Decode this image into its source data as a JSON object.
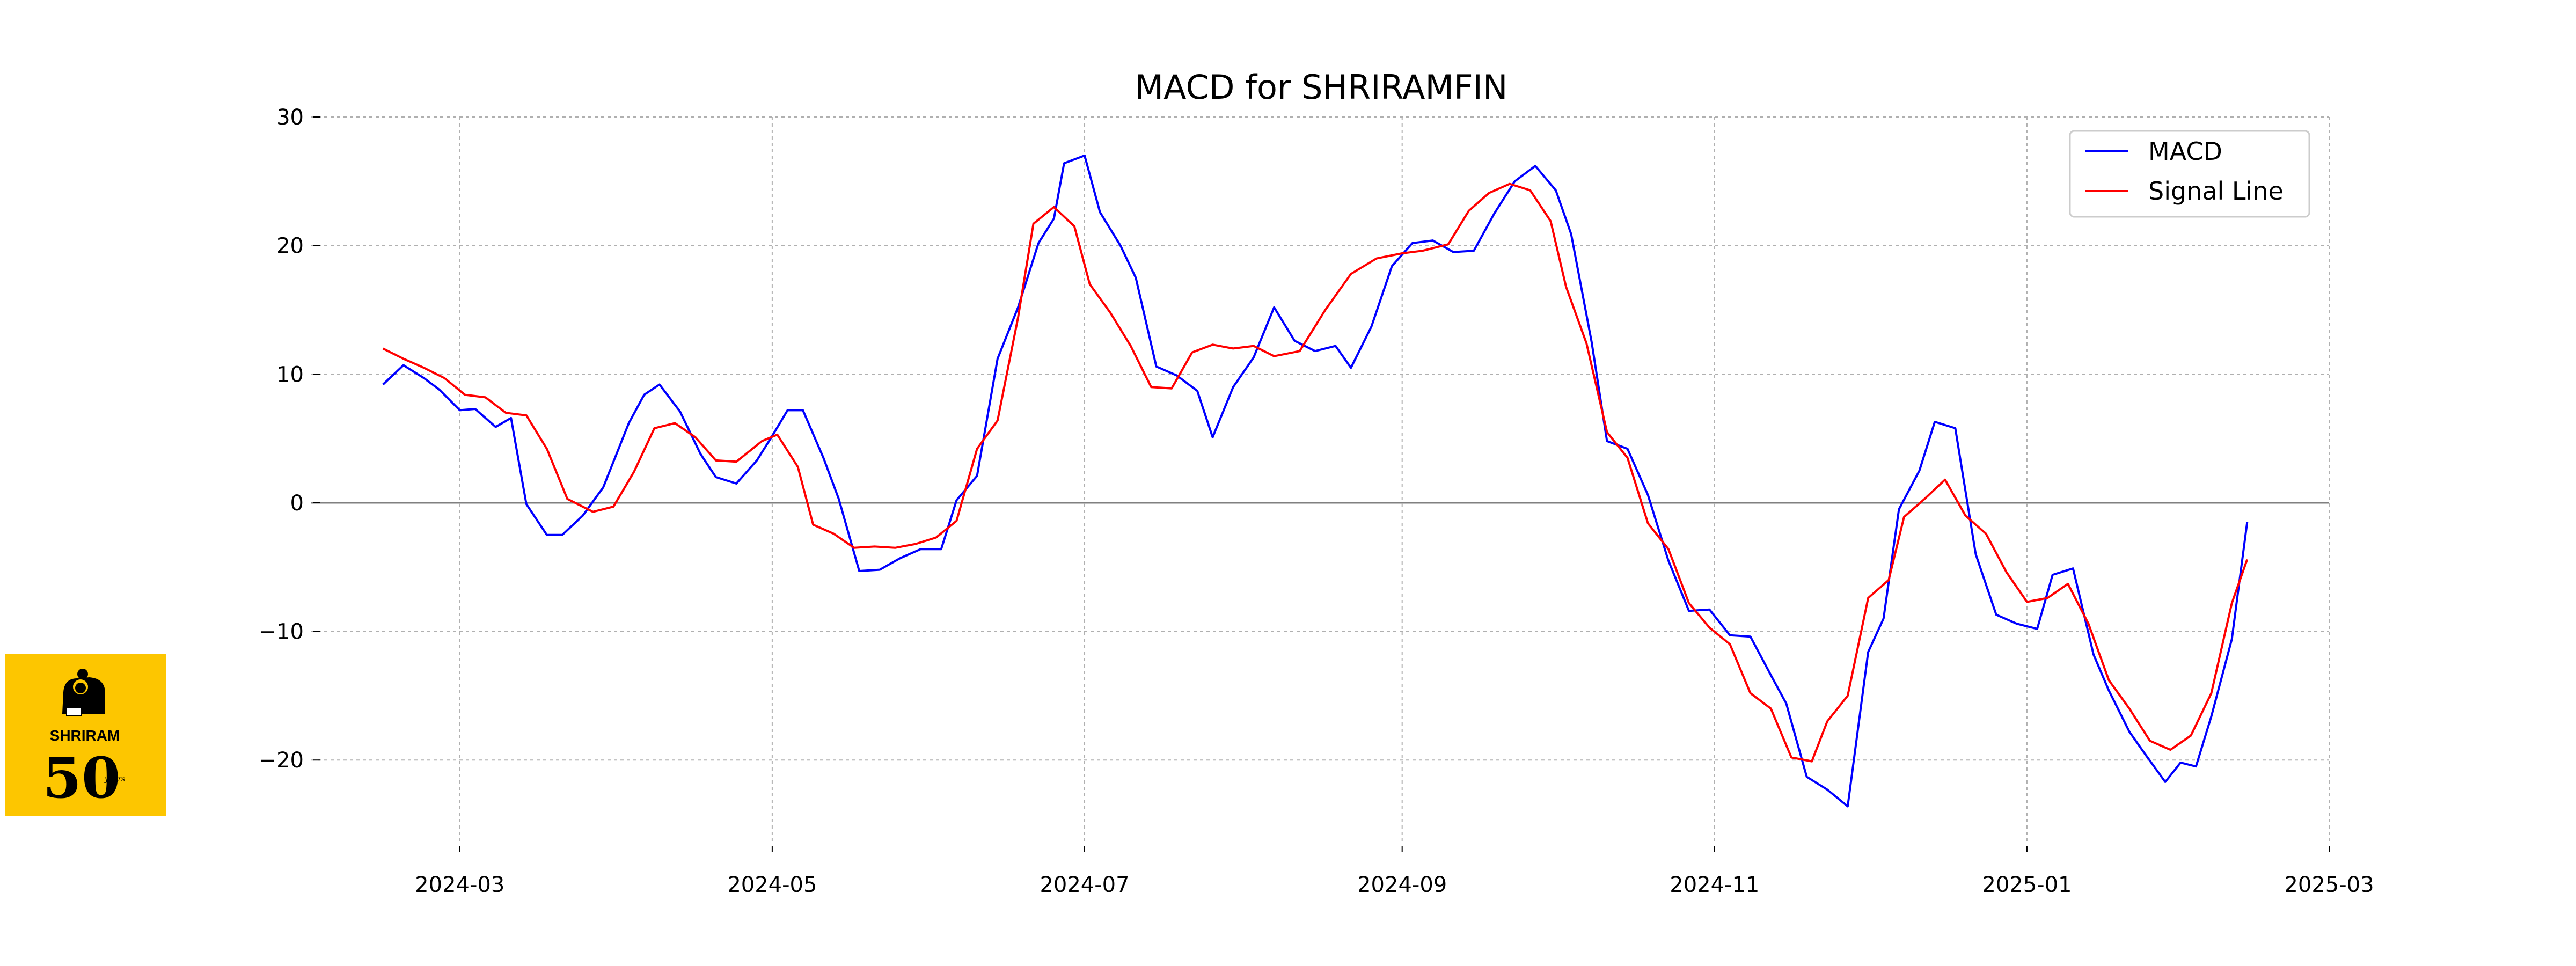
{
  "chart_data": {
    "type": "line",
    "title": "MACD for SHRIRAMFIN",
    "xlabel": "",
    "ylabel": "",
    "x_range": [
      "2024-02-01",
      "2025-03-01"
    ],
    "ylim": [
      -26.5,
      30
    ],
    "xticks": [
      "2024-03",
      "2024-05",
      "2024-07",
      "2024-09",
      "2024-11",
      "2025-01",
      "2025-03"
    ],
    "xtick_dates": [
      "2024-03-01",
      "2024-05-01",
      "2024-07-01",
      "2024-09-01",
      "2024-11-01",
      "2025-01-01",
      "2025-03-01"
    ],
    "yticks": [
      -20,
      -10,
      0,
      10,
      20,
      30
    ],
    "ytick_labels": [
      "−20",
      "−10",
      "0",
      "10",
      "20",
      "30"
    ],
    "grid": true,
    "zero_line": true,
    "legend_position": "top-right",
    "series": [
      {
        "name": "MACD",
        "color": "#0000ff",
        "x": [
          "2024-02-15",
          "2024-02-19",
          "2024-02-23",
          "2024-02-26",
          "2024-03-01",
          "2024-03-04",
          "2024-03-08",
          "2024-03-11",
          "2024-03-14",
          "2024-03-18",
          "2024-03-21",
          "2024-03-25",
          "2024-03-29",
          "2024-04-03",
          "2024-04-06",
          "2024-04-09",
          "2024-04-13",
          "2024-04-17",
          "2024-04-20",
          "2024-04-24",
          "2024-04-28",
          "2024-05-01",
          "2024-05-04",
          "2024-05-07",
          "2024-05-11",
          "2024-05-14",
          "2024-05-18",
          "2024-05-22",
          "2024-05-26",
          "2024-05-30",
          "2024-06-03",
          "2024-06-06",
          "2024-06-10",
          "2024-06-14",
          "2024-06-18",
          "2024-06-22",
          "2024-06-25",
          "2024-06-27",
          "2024-07-01",
          "2024-07-04",
          "2024-07-08",
          "2024-07-11",
          "2024-07-15",
          "2024-07-19",
          "2024-07-23",
          "2024-07-26",
          "2024-07-30",
          "2024-08-03",
          "2024-08-07",
          "2024-08-11",
          "2024-08-15",
          "2024-08-19",
          "2024-08-22",
          "2024-08-26",
          "2024-08-30",
          "2024-09-03",
          "2024-09-07",
          "2024-09-11",
          "2024-09-15",
          "2024-09-19",
          "2024-09-23",
          "2024-09-27",
          "2024-10-01",
          "2024-10-04",
          "2024-10-08",
          "2024-10-11",
          "2024-10-15",
          "2024-10-19",
          "2024-10-23",
          "2024-10-27",
          "2024-10-31",
          "2024-11-04",
          "2024-11-08",
          "2024-11-12",
          "2024-11-15",
          "2024-11-19",
          "2024-11-23",
          "2024-11-27",
          "2024-12-01",
          "2024-12-04",
          "2024-12-07",
          "2024-12-11",
          "2024-12-14",
          "2024-12-18",
          "2024-12-22",
          "2024-12-26",
          "2024-12-30",
          "2025-01-03",
          "2025-01-06",
          "2025-01-10",
          "2025-01-14",
          "2025-01-17",
          "2025-01-21",
          "2025-01-24",
          "2025-01-28",
          "2025-01-31",
          "2025-02-03",
          "2025-02-06",
          "2025-02-10",
          "2025-02-13"
        ],
        "y": [
          9.2,
          10.7,
          9.7,
          8.8,
          7.2,
          7.3,
          5.9,
          6.6,
          -0.1,
          -2.5,
          -2.5,
          -1.0,
          1.2,
          6.2,
          8.4,
          9.2,
          7.1,
          3.8,
          2.0,
          1.5,
          3.3,
          5.2,
          7.2,
          7.2,
          3.5,
          0.3,
          -5.3,
          -5.2,
          -4.3,
          -3.6,
          -3.6,
          0.2,
          2.1,
          11.2,
          15.2,
          20.2,
          22.1,
          26.4,
          27.0,
          22.6,
          20.0,
          17.5,
          10.6,
          9.9,
          8.7,
          5.1,
          9.0,
          11.3,
          15.2,
          12.6,
          11.8,
          12.2,
          10.5,
          13.7,
          18.4,
          20.2,
          20.4,
          19.5,
          19.6,
          22.5,
          25.0,
          26.2,
          24.3,
          20.9,
          12.5,
          4.8,
          4.2,
          0.6,
          -4.5,
          -8.4,
          -8.3,
          -10.3,
          -10.4,
          -13.4,
          -15.6,
          -21.3,
          -22.3,
          -23.6,
          -11.6,
          -9.0,
          -0.5,
          2.5,
          6.3,
          5.8,
          -4.0,
          -8.7,
          -9.4,
          -9.8,
          -5.6,
          -5.1,
          -11.8,
          -14.6,
          -17.8,
          -19.5,
          -21.7,
          -20.2,
          -20.5,
          -16.6,
          -10.6,
          -1.5
        ]
      },
      {
        "name": "Signal Line",
        "color": "#ff0000",
        "x": [
          "2024-02-15",
          "2024-02-19",
          "2024-02-23",
          "2024-02-27",
          "2024-03-02",
          "2024-03-06",
          "2024-03-10",
          "2024-03-14",
          "2024-03-18",
          "2024-03-22",
          "2024-03-27",
          "2024-03-31",
          "2024-04-04",
          "2024-04-08",
          "2024-04-12",
          "2024-04-16",
          "2024-04-20",
          "2024-04-24",
          "2024-04-29",
          "2024-05-02",
          "2024-05-06",
          "2024-05-09",
          "2024-05-13",
          "2024-05-17",
          "2024-05-21",
          "2024-05-25",
          "2024-05-29",
          "2024-06-02",
          "2024-06-06",
          "2024-06-10",
          "2024-06-14",
          "2024-06-18",
          "2024-06-21",
          "2024-06-25",
          "2024-06-29",
          "2024-07-02",
          "2024-07-06",
          "2024-07-10",
          "2024-07-14",
          "2024-07-18",
          "2024-07-22",
          "2024-07-26",
          "2024-07-30",
          "2024-08-03",
          "2024-08-07",
          "2024-08-12",
          "2024-08-17",
          "2024-08-22",
          "2024-08-27",
          "2024-09-01",
          "2024-09-05",
          "2024-09-10",
          "2024-09-14",
          "2024-09-18",
          "2024-09-22",
          "2024-09-26",
          "2024-09-30",
          "2024-10-03",
          "2024-10-07",
          "2024-10-11",
          "2024-10-15",
          "2024-10-19",
          "2024-10-23",
          "2024-10-27",
          "2024-10-31",
          "2024-11-04",
          "2024-11-08",
          "2024-11-12",
          "2024-11-16",
          "2024-11-20",
          "2024-11-23",
          "2024-11-27",
          "2024-12-01",
          "2024-12-05",
          "2024-12-08",
          "2024-12-12",
          "2024-12-16",
          "2024-12-20",
          "2024-12-24",
          "2024-12-28",
          "2025-01-01",
          "2025-01-05",
          "2025-01-09",
          "2025-01-13",
          "2025-01-17",
          "2025-01-21",
          "2025-01-25",
          "2025-01-29",
          "2025-02-02",
          "2025-02-06",
          "2025-02-10",
          "2025-02-13"
        ],
        "y": [
          12.0,
          11.2,
          10.5,
          9.7,
          8.4,
          8.2,
          7.0,
          6.8,
          4.2,
          0.3,
          -0.7,
          -0.3,
          2.4,
          5.8,
          6.2,
          5.1,
          3.3,
          3.2,
          4.8,
          5.3,
          2.8,
          -1.7,
          -2.4,
          -3.5,
          -3.4,
          -3.5,
          -3.2,
          -2.7,
          -1.4,
          4.2,
          6.4,
          14.4,
          21.7,
          23.0,
          21.5,
          17.0,
          14.8,
          12.2,
          9.0,
          8.9,
          11.7,
          12.3,
          12.0,
          12.2,
          11.4,
          11.8,
          15.0,
          17.8,
          19.0,
          19.4,
          19.6,
          20.1,
          22.7,
          24.1,
          24.8,
          24.3,
          21.9,
          16.8,
          12.4,
          5.5,
          3.5,
          -1.6,
          -3.6,
          -7.8,
          -9.7,
          -11.0,
          -14.8,
          -16.0,
          -19.8,
          -20.1,
          -17.0,
          -15.0,
          -7.4,
          -6.0,
          -1.1,
          0.3,
          1.8,
          -1.0,
          -2.4,
          -5.4,
          -7.7,
          -7.4,
          -6.3,
          -9.4,
          -13.8,
          -16.0,
          -18.5,
          -19.2,
          -18.1,
          -14.8,
          -7.8,
          -4.4
        ]
      }
    ]
  },
  "logo": {
    "name": "SHRIRAM",
    "number": "50",
    "suffix": "years",
    "bg_color": "#fdc600"
  }
}
